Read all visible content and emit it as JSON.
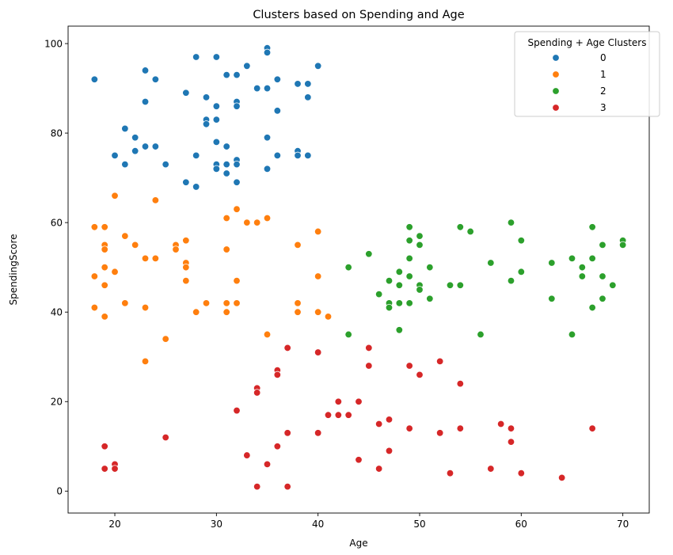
{
  "chart_data": {
    "type": "scatter",
    "title": "Clusters based on Spending and Age",
    "xlabel": "Age",
    "ylabel": "SpendingScore",
    "xlim": [
      15.4,
      72.6
    ],
    "ylim": [
      -4.9,
      103.9
    ],
    "xticks": [
      20,
      30,
      40,
      50,
      60,
      70
    ],
    "yticks": [
      0,
      20,
      40,
      60,
      80,
      100
    ],
    "grid": false,
    "legend": {
      "title": "Spending + Age Clusters",
      "placement": "top-right"
    },
    "series": [
      {
        "name": "0",
        "color": "#1f77b4",
        "points": [
          [
            18,
            92
          ],
          [
            20,
            75
          ],
          [
            21,
            81
          ],
          [
            21,
            73
          ],
          [
            22,
            79
          ],
          [
            22,
            76
          ],
          [
            23,
            94
          ],
          [
            23,
            87
          ],
          [
            23,
            77
          ],
          [
            24,
            92
          ],
          [
            24,
            77
          ],
          [
            25,
            73
          ],
          [
            27,
            89
          ],
          [
            27,
            69
          ],
          [
            28,
            97
          ],
          [
            28,
            75
          ],
          [
            28,
            68
          ],
          [
            29,
            88
          ],
          [
            29,
            83
          ],
          [
            29,
            82
          ],
          [
            30,
            97
          ],
          [
            30,
            86
          ],
          [
            30,
            83
          ],
          [
            30,
            78
          ],
          [
            30,
            73
          ],
          [
            30,
            72
          ],
          [
            31,
            93
          ],
          [
            31,
            77
          ],
          [
            31,
            73
          ],
          [
            31,
            71
          ],
          [
            32,
            93
          ],
          [
            32,
            87
          ],
          [
            32,
            86
          ],
          [
            32,
            74
          ],
          [
            32,
            73
          ],
          [
            32,
            69
          ],
          [
            33,
            95
          ],
          [
            34,
            90
          ],
          [
            35,
            99
          ],
          [
            35,
            98
          ],
          [
            35,
            90
          ],
          [
            35,
            79
          ],
          [
            35,
            72
          ],
          [
            36,
            92
          ],
          [
            36,
            85
          ],
          [
            36,
            75
          ],
          [
            38,
            91
          ],
          [
            38,
            76
          ],
          [
            38,
            75
          ],
          [
            39,
            91
          ],
          [
            39,
            88
          ],
          [
            39,
            75
          ],
          [
            40,
            95
          ]
        ]
      },
      {
        "name": "1",
        "color": "#ff7f0e",
        "points": [
          [
            18,
            59
          ],
          [
            18,
            48
          ],
          [
            18,
            41
          ],
          [
            19,
            59
          ],
          [
            19,
            55
          ],
          [
            19,
            54
          ],
          [
            19,
            50
          ],
          [
            19,
            46
          ],
          [
            19,
            39
          ],
          [
            20,
            66
          ],
          [
            20,
            49
          ],
          [
            21,
            57
          ],
          [
            21,
            42
          ],
          [
            22,
            55
          ],
          [
            23,
            52
          ],
          [
            23,
            41
          ],
          [
            23,
            29
          ],
          [
            24,
            65
          ],
          [
            24,
            52
          ],
          [
            25,
            34
          ],
          [
            26,
            55
          ],
          [
            26,
            54
          ],
          [
            27,
            56
          ],
          [
            27,
            51
          ],
          [
            27,
            50
          ],
          [
            27,
            47
          ],
          [
            28,
            40
          ],
          [
            29,
            42
          ],
          [
            31,
            61
          ],
          [
            31,
            54
          ],
          [
            31,
            42
          ],
          [
            31,
            40
          ],
          [
            32,
            63
          ],
          [
            32,
            47
          ],
          [
            32,
            42
          ],
          [
            33,
            60
          ],
          [
            34,
            60
          ],
          [
            35,
            61
          ],
          [
            35,
            35
          ],
          [
            38,
            55
          ],
          [
            38,
            42
          ],
          [
            38,
            40
          ],
          [
            40,
            58
          ],
          [
            40,
            48
          ],
          [
            40,
            40
          ],
          [
            41,
            39
          ]
        ]
      },
      {
        "name": "2",
        "color": "#2ca02c",
        "points": [
          [
            43,
            50
          ],
          [
            43,
            35
          ],
          [
            45,
            53
          ],
          [
            46,
            44
          ],
          [
            47,
            47
          ],
          [
            47,
            42
          ],
          [
            47,
            41
          ],
          [
            48,
            49
          ],
          [
            48,
            46
          ],
          [
            48,
            42
          ],
          [
            48,
            36
          ],
          [
            49,
            59
          ],
          [
            49,
            56
          ],
          [
            49,
            52
          ],
          [
            49,
            48
          ],
          [
            49,
            42
          ],
          [
            50,
            57
          ],
          [
            50,
            55
          ],
          [
            50,
            46
          ],
          [
            50,
            45
          ],
          [
            51,
            50
          ],
          [
            51,
            43
          ],
          [
            53,
            46
          ],
          [
            54,
            59
          ],
          [
            54,
            46
          ],
          [
            55,
            58
          ],
          [
            56,
            35
          ],
          [
            57,
            51
          ],
          [
            59,
            60
          ],
          [
            59,
            47
          ],
          [
            60,
            56
          ],
          [
            60,
            49
          ],
          [
            63,
            51
          ],
          [
            63,
            43
          ],
          [
            65,
            52
          ],
          [
            65,
            35
          ],
          [
            66,
            50
          ],
          [
            66,
            48
          ],
          [
            67,
            59
          ],
          [
            67,
            52
          ],
          [
            67,
            41
          ],
          [
            68,
            55
          ],
          [
            68,
            48
          ],
          [
            68,
            43
          ],
          [
            69,
            46
          ],
          [
            70,
            56
          ],
          [
            70,
            55
          ]
        ]
      },
      {
        "name": "3",
        "color": "#d62728",
        "points": [
          [
            19,
            10
          ],
          [
            19,
            5
          ],
          [
            20,
            6
          ],
          [
            20,
            5
          ],
          [
            25,
            12
          ],
          [
            32,
            18
          ],
          [
            33,
            8
          ],
          [
            34,
            23
          ],
          [
            34,
            22
          ],
          [
            34,
            1
          ],
          [
            35,
            6
          ],
          [
            36,
            27
          ],
          [
            36,
            26
          ],
          [
            36,
            10
          ],
          [
            37,
            32
          ],
          [
            37,
            13
          ],
          [
            37,
            1
          ],
          [
            40,
            31
          ],
          [
            40,
            13
          ],
          [
            41,
            17
          ],
          [
            42,
            20
          ],
          [
            42,
            17
          ],
          [
            43,
            17
          ],
          [
            44,
            20
          ],
          [
            44,
            7
          ],
          [
            45,
            32
          ],
          [
            45,
            28
          ],
          [
            46,
            15
          ],
          [
            46,
            5
          ],
          [
            47,
            16
          ],
          [
            47,
            9
          ],
          [
            49,
            28
          ],
          [
            49,
            14
          ],
          [
            50,
            26
          ],
          [
            52,
            29
          ],
          [
            52,
            13
          ],
          [
            53,
            4
          ],
          [
            54,
            24
          ],
          [
            54,
            14
          ],
          [
            57,
            5
          ],
          [
            58,
            15
          ],
          [
            59,
            14
          ],
          [
            59,
            11
          ],
          [
            60,
            4
          ],
          [
            64,
            3
          ],
          [
            67,
            14
          ]
        ]
      }
    ]
  }
}
